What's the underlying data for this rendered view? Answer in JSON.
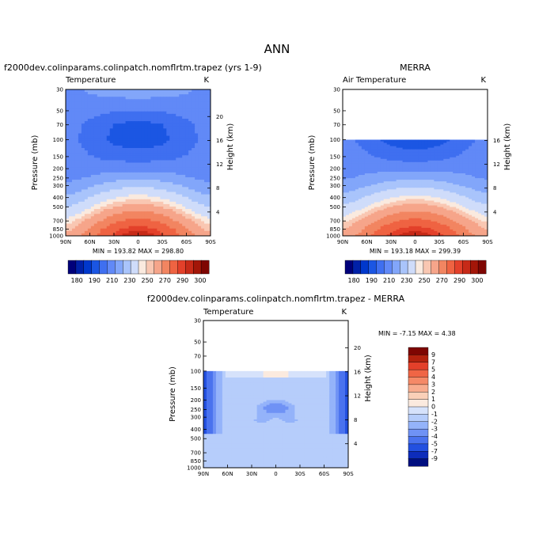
{
  "figure": {
    "title": "ANN"
  },
  "chart_data": [
    {
      "type": "heatmap",
      "case_title": "f2000dev.colinparams.colinpatch.nomflrtm.trapez (yrs 1-9)",
      "variable": "Temperature",
      "units": "K",
      "xlabel": "",
      "ylabel": "Pressure (mb)",
      "ylabel_right": "Height (km)",
      "x_ticks": [
        "90N",
        "60N",
        "30N",
        "0",
        "30S",
        "60S",
        "90S"
      ],
      "y_ticks": [
        "30",
        "50",
        "70",
        "100",
        "150",
        "200",
        "250",
        "300",
        "400",
        "500",
        "700",
        "850",
        "1000"
      ],
      "height_ticks": [
        "4",
        "8",
        "12",
        "16",
        "20"
      ],
      "stats": "MIN = 193.82   MAX = 298.80",
      "data_top_pressure": 30,
      "colorbar": {
        "orientation": "horizontal",
        "labels": [
          "180",
          "190",
          "210",
          "230",
          "250",
          "270",
          "290",
          "300"
        ],
        "colors": [
          "#00007a",
          "#0021a8",
          "#0038cc",
          "#1b56e3",
          "#3f6ff0",
          "#6189f7",
          "#82a6fa",
          "#a9c4fb",
          "#cfdcfa",
          "#faeadf",
          "#f9c7b2",
          "#f6a58a",
          "#f28561",
          "#ef6342",
          "#e3402a",
          "#c72a18",
          "#a31608",
          "#7e0602"
        ]
      },
      "field_stops": [
        {
          "p": 30,
          "eq": 227,
          "pole": 218
        },
        {
          "p": 50,
          "eq": 210,
          "pole": 216
        },
        {
          "p": 70,
          "eq": 197,
          "pole": 214
        },
        {
          "p": 100,
          "eq": 194,
          "pole": 213
        },
        {
          "p": 150,
          "eq": 205,
          "pole": 214
        },
        {
          "p": 200,
          "eq": 217,
          "pole": 215
        },
        {
          "p": 250,
          "eq": 228,
          "pole": 217
        },
        {
          "p": 300,
          "eq": 238,
          "pole": 222
        },
        {
          "p": 400,
          "eq": 253,
          "pole": 232
        },
        {
          "p": 500,
          "eq": 264,
          "pole": 240
        },
        {
          "p": 700,
          "eq": 283,
          "pole": 252
        },
        {
          "p": 850,
          "eq": 293,
          "pole": 258
        },
        {
          "p": 1000,
          "eq": 299,
          "pole": 262
        }
      ]
    },
    {
      "type": "heatmap",
      "case_title": "MERRA",
      "variable": "Air Temperature",
      "units": "K",
      "xlabel": "",
      "ylabel": "Pressure (mb)",
      "ylabel_right": "Height (km)",
      "x_ticks": [
        "90N",
        "60N",
        "30N",
        "0",
        "30S",
        "60S",
        "90S"
      ],
      "y_ticks": [
        "30",
        "50",
        "70",
        "100",
        "150",
        "200",
        "250",
        "300",
        "400",
        "500",
        "700",
        "850",
        "1000"
      ],
      "height_ticks": [
        "4",
        "8",
        "12",
        "16"
      ],
      "stats": "MIN = 193.18   MAX = 299.39",
      "data_top_pressure": 100,
      "colorbar": {
        "orientation": "horizontal",
        "labels": [
          "180",
          "190",
          "210",
          "230",
          "250",
          "270",
          "290",
          "300"
        ],
        "colors": [
          "#00007a",
          "#0021a8",
          "#0038cc",
          "#1b56e3",
          "#3f6ff0",
          "#6189f7",
          "#82a6fa",
          "#a9c4fb",
          "#cfdcfa",
          "#faeadf",
          "#f9c7b2",
          "#f6a58a",
          "#f28561",
          "#ef6342",
          "#e3402a",
          "#c72a18",
          "#a31608",
          "#7e0602"
        ]
      },
      "field_stops": [
        {
          "p": 100,
          "eq": 193,
          "pole": 213
        },
        {
          "p": 150,
          "eq": 205,
          "pole": 216
        },
        {
          "p": 200,
          "eq": 217,
          "pole": 217
        },
        {
          "p": 250,
          "eq": 228,
          "pole": 219
        },
        {
          "p": 300,
          "eq": 238,
          "pole": 224
        },
        {
          "p": 400,
          "eq": 253,
          "pole": 234
        },
        {
          "p": 500,
          "eq": 264,
          "pole": 242
        },
        {
          "p": 700,
          "eq": 283,
          "pole": 254
        },
        {
          "p": 850,
          "eq": 293,
          "pole": 260
        },
        {
          "p": 1000,
          "eq": 299,
          "pole": 264
        }
      ]
    },
    {
      "type": "heatmap",
      "case_title": "f2000dev.colinparams.colinpatch.nomflrtm.trapez - MERRA",
      "variable": "Temperature",
      "units": "K",
      "xlabel": "",
      "ylabel": "Pressure (mb)",
      "ylabel_right": "Height (km)",
      "x_ticks": [
        "90N",
        "60N",
        "30N",
        "0",
        "30S",
        "60S",
        "90S"
      ],
      "y_ticks": [
        "30",
        "50",
        "70",
        "100",
        "150",
        "200",
        "250",
        "300",
        "400",
        "500",
        "700",
        "850",
        "1000"
      ],
      "height_ticks": [
        "4",
        "8",
        "12",
        "16",
        "20"
      ],
      "stats": "MIN =   -7.15   MAX =    4.38",
      "data_top_pressure": 100,
      "colorbar": {
        "orientation": "vertical",
        "labels": [
          "9",
          "7",
          "5",
          "4",
          "3",
          "2",
          "1",
          "0",
          "-1",
          "-2",
          "-3",
          "-4",
          "-5",
          "-7",
          "-9"
        ],
        "colors": [
          "#7e0602",
          "#b3220e",
          "#e3402a",
          "#f06545",
          "#f58967",
          "#f8ac8e",
          "#fad0b8",
          "#fbeadf",
          "#d6e2fb",
          "#b6cdfb",
          "#94b3fa",
          "#6f92f5",
          "#4a72ee",
          "#2350e0",
          "#0d2cbb",
          "#000f80"
        ]
      },
      "diff_pattern": {
        "background": -1,
        "polar_max": -6,
        "equatorial_minimum": -4,
        "upper_equatorial_warm": 0.5
      }
    }
  ]
}
